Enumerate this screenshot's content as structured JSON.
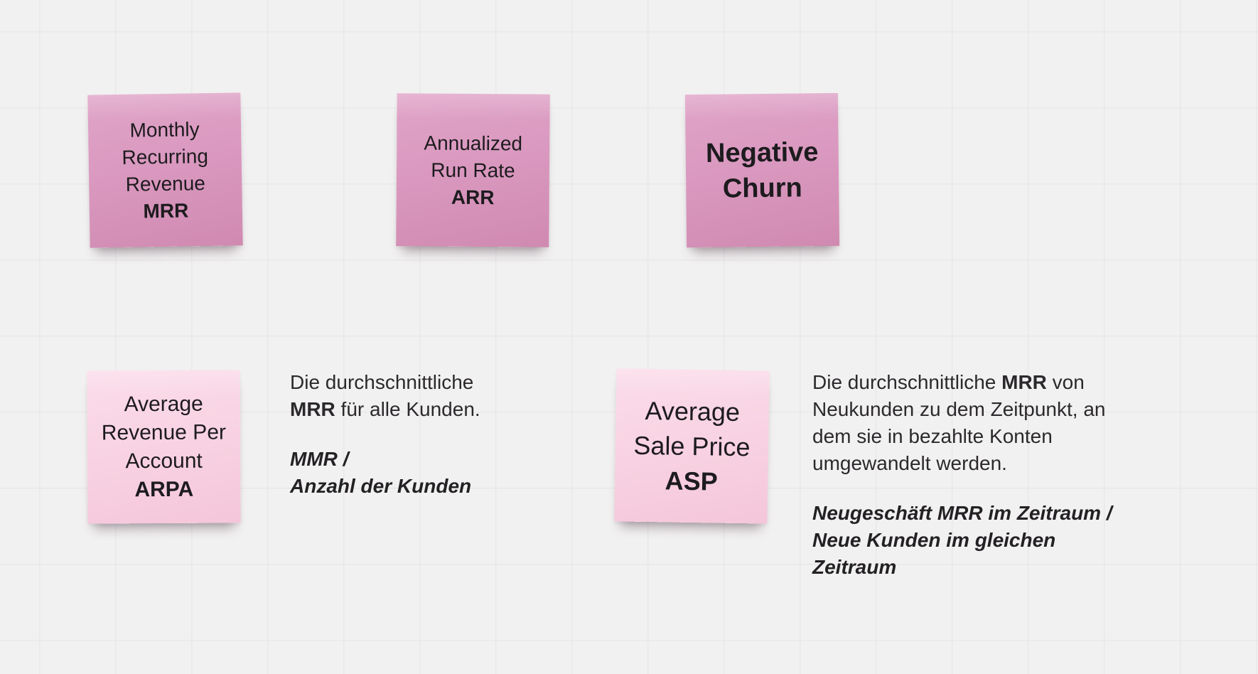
{
  "board": {
    "background_color": "#f2f1f1",
    "grid_line_color": "#e9e8e9",
    "sticky_dark_pink": "#d995bd",
    "sticky_light_pink": "#f8d2e2",
    "body_text_color": "#2b292c"
  },
  "notes": [
    {
      "id": "mrr",
      "color": "dark-pink",
      "lines": [
        [
          {
            "t": "Monthly"
          }
        ],
        [
          {
            "t": "Recurring"
          }
        ],
        [
          {
            "t": "Revenue"
          }
        ],
        [
          {
            "t": "MRR",
            "b": true
          }
        ]
      ]
    },
    {
      "id": "arr",
      "color": "dark-pink",
      "lines": [
        [
          {
            "t": "Annualized"
          }
        ],
        [
          {
            "t": "Run Rate"
          }
        ],
        [
          {
            "t": "ARR",
            "b": true
          }
        ]
      ]
    },
    {
      "id": "negative-churn",
      "color": "dark-pink",
      "lines": [
        [
          {
            "t": "Negative",
            "b": true
          }
        ],
        [
          {
            "t": "Churn",
            "b": true
          }
        ]
      ]
    },
    {
      "id": "arpa",
      "color": "light-pink",
      "lines": [
        [
          {
            "t": "Average"
          }
        ],
        [
          {
            "t": "Revenue Per"
          }
        ],
        [
          {
            "t": "Account"
          }
        ],
        [
          {
            "t": "ARPA",
            "b": true
          }
        ]
      ]
    },
    {
      "id": "asp",
      "color": "light-pink",
      "lines": [
        [
          {
            "t": "Average"
          }
        ],
        [
          {
            "t": "Sale Price"
          }
        ],
        [
          {
            "t": "ASP",
            "b": true
          }
        ]
      ]
    }
  ],
  "text_blocks": [
    {
      "id": "arpa-definition",
      "definition": [
        [
          {
            "t": "Die durchschnittliche"
          }
        ],
        [
          {
            "t": "MRR",
            "b": true
          },
          {
            "t": " für alle Kunden."
          }
        ]
      ],
      "formula": [
        [
          {
            "t": "MMR /",
            "b": true,
            "i": true
          }
        ],
        [
          {
            "t": "Anzahl der Kunden",
            "b": true,
            "i": true
          }
        ]
      ]
    },
    {
      "id": "asp-definition",
      "definition": [
        [
          {
            "t": "Die durchschnittliche "
          },
          {
            "t": "MRR",
            "b": true
          },
          {
            "t": " von"
          }
        ],
        [
          {
            "t": "Neukunden zu dem Zeitpunkt, an"
          }
        ],
        [
          {
            "t": "dem sie in bezahlte Konten"
          }
        ],
        [
          {
            "t": "umgewandelt werden."
          }
        ]
      ],
      "formula": [
        [
          {
            "t": "Neugeschäft MRR im Zeitraum /",
            "b": true,
            "i": true
          }
        ],
        [
          {
            "t": "Neue Kunden im gleichen",
            "b": true,
            "i": true
          }
        ],
        [
          {
            "t": "Zeitraum",
            "b": true,
            "i": true
          }
        ]
      ]
    }
  ]
}
